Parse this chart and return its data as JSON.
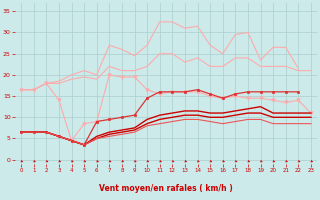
{
  "background_color": "#cceaea",
  "grid_color": "#aacece",
  "xlabel": "Vent moyen/en rafales ( km/h )",
  "xlabel_color": "#cc0000",
  "tick_color": "#cc0000",
  "x_ticks": [
    0,
    1,
    2,
    3,
    4,
    5,
    6,
    7,
    8,
    9,
    10,
    11,
    12,
    13,
    14,
    15,
    16,
    17,
    18,
    19,
    20,
    21,
    22,
    23
  ],
  "ylim": [
    -1,
    37
  ],
  "xlim": [
    -0.5,
    23.5
  ],
  "yticks": [
    0,
    5,
    10,
    15,
    20,
    25,
    30,
    35
  ],
  "series": [
    {
      "color": "#ffaaaa",
      "marker": null,
      "lw": 0.8,
      "x": [
        0,
        1,
        2,
        3,
        4,
        5,
        6,
        7,
        8,
        9,
        10,
        11,
        12,
        13,
        14,
        15,
        16,
        17,
        18,
        19,
        20,
        21,
        22
      ],
      "y": [
        16.5,
        16.5,
        18,
        18.5,
        20,
        21,
        20,
        27,
        26,
        24.5,
        27,
        32.5,
        32.5,
        31,
        31.5,
        27,
        25,
        29.5,
        30,
        23.5,
        26.5,
        26.5,
        21.5
      ]
    },
    {
      "color": "#ffaaaa",
      "marker": null,
      "lw": 0.8,
      "x": [
        0,
        1,
        2,
        3,
        4,
        5,
        6,
        7,
        8,
        9,
        10,
        11,
        12,
        13,
        14,
        15,
        16,
        17,
        18,
        19,
        20,
        21,
        22,
        23
      ],
      "y": [
        16.5,
        16.5,
        18,
        18,
        19,
        19.5,
        19,
        22,
        21,
        21,
        22,
        25,
        25,
        23,
        24,
        22,
        22,
        24,
        24,
        22,
        22,
        22,
        21,
        21
      ]
    },
    {
      "color": "#ffaaaa",
      "marker": "v",
      "markersize": 2.5,
      "lw": 0.8,
      "x": [
        0,
        1,
        2,
        3,
        4,
        5,
        6,
        7,
        8,
        9,
        10,
        11,
        12,
        13,
        14,
        15,
        16,
        17,
        18,
        19,
        20,
        21,
        22,
        23
      ],
      "y": [
        16.5,
        16.5,
        18,
        14,
        4.5,
        8.5,
        9,
        20,
        19.5,
        19.5,
        16.5,
        15.5,
        16,
        16,
        16,
        15,
        14.5,
        15,
        14.5,
        14.5,
        14,
        13.5,
        14,
        11
      ]
    },
    {
      "color": "#dd3333",
      "marker": "s",
      "markersize": 2,
      "lw": 0.9,
      "x": [
        0,
        1,
        2,
        3,
        4,
        5,
        6,
        7,
        8,
        9,
        10,
        11,
        12,
        13,
        14,
        15,
        16,
        17,
        18,
        19,
        20,
        21,
        22
      ],
      "y": [
        6.5,
        6.5,
        6.5,
        5.5,
        4.5,
        3.5,
        9,
        9.5,
        10,
        10.5,
        14.5,
        16,
        16,
        16,
        16.5,
        15.5,
        14.5,
        15.5,
        16,
        16,
        16,
        16,
        16
      ]
    },
    {
      "color": "#cc0000",
      "marker": null,
      "lw": 1.0,
      "x": [
        0,
        1,
        2,
        3,
        4,
        5,
        6,
        7,
        8,
        9,
        10,
        11,
        12,
        13,
        14,
        15,
        16,
        17,
        18,
        19,
        20,
        21,
        22,
        23
      ],
      "y": [
        6.5,
        6.5,
        6.5,
        5.5,
        4.5,
        3.5,
        5.5,
        6.5,
        7,
        7.5,
        9.5,
        10.5,
        11,
        11.5,
        11.5,
        11,
        11,
        11.5,
        12,
        12.5,
        11,
        11,
        11,
        11
      ]
    },
    {
      "color": "#cc0000",
      "marker": null,
      "lw": 1.0,
      "x": [
        0,
        1,
        2,
        3,
        4,
        5,
        6,
        7,
        8,
        9,
        10,
        11,
        12,
        13,
        14,
        15,
        16,
        17,
        18,
        19,
        20,
        21,
        22,
        23
      ],
      "y": [
        6.5,
        6.5,
        6.5,
        5.5,
        4.5,
        3.5,
        5,
        6,
        6.5,
        7,
        8.5,
        9.5,
        10,
        10.5,
        10.5,
        10,
        10,
        10.5,
        11,
        11,
        10,
        10,
        10,
        10
      ]
    },
    {
      "color": "#ee5555",
      "marker": null,
      "lw": 0.8,
      "x": [
        0,
        1,
        2,
        3,
        4,
        5,
        6,
        7,
        8,
        9,
        10,
        11,
        12,
        13,
        14,
        15,
        16,
        17,
        18,
        19,
        20,
        21,
        22,
        23
      ],
      "y": [
        6.5,
        6.5,
        6.5,
        5.5,
        4.5,
        3.5,
        5,
        5.5,
        6,
        6.5,
        8,
        8.5,
        9,
        9.5,
        9.5,
        9,
        8.5,
        9,
        9.5,
        9.5,
        8.5,
        8.5,
        8.5,
        8.5
      ]
    }
  ]
}
